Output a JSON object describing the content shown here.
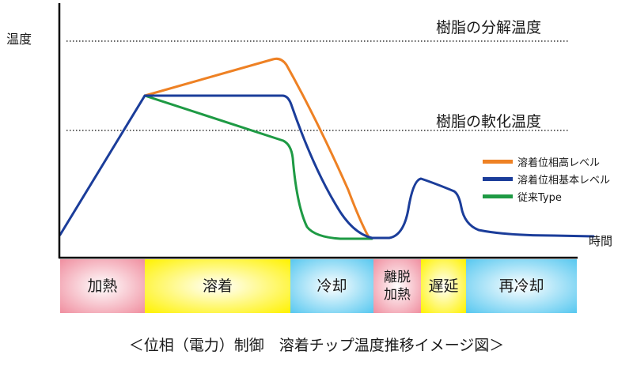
{
  "diagram": {
    "y_axis_label": "温度",
    "x_axis_label": "時間",
    "reference_lines": [
      {
        "label": "樹脂の分解温度"
      },
      {
        "label": "樹脂の軟化温度"
      }
    ],
    "legend": [
      {
        "label": "溶着位相高レベル",
        "color": "#ee8124"
      },
      {
        "label": "溶着位相基本レベル",
        "color": "#1b3d9a"
      },
      {
        "label": "従来Type",
        "color": "#1e9a44"
      }
    ],
    "phases": [
      {
        "label": "加熱",
        "color": "#f08fa0"
      },
      {
        "label": "溶着",
        "color": "#fff200"
      },
      {
        "label": "冷却",
        "color": "#58c8f0"
      },
      {
        "label": "離脱\n加熱",
        "color": "#f08fa0"
      },
      {
        "label": "遅延",
        "color": "#fff200"
      },
      {
        "label": "再冷却",
        "color": "#58c8f0"
      }
    ],
    "caption": "＜位相（電力）制御　溶着チップ温度推移イメージ図＞"
  }
}
